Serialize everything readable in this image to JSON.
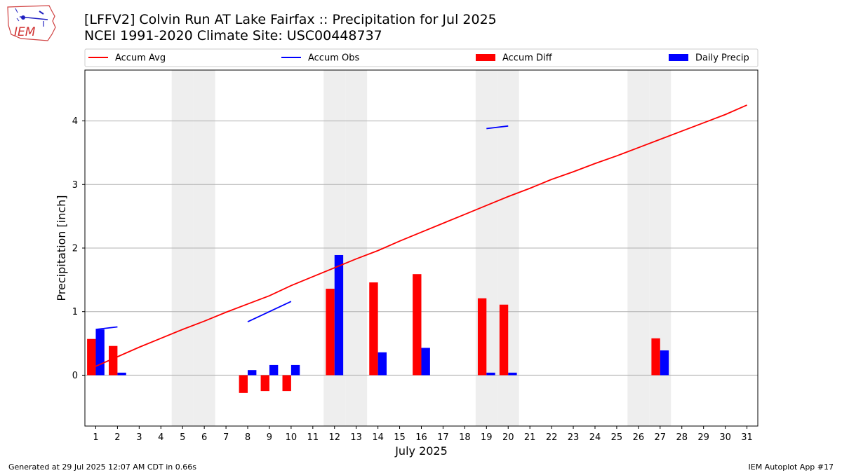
{
  "header": {
    "logo_text": "IEM",
    "title_line1": "[LFFV2] Colvin Run  AT Lake Fairfax :: Precipitation for Jul 2025",
    "title_line2": "NCEI 1991-2020 Climate Site: USC00448737"
  },
  "footer": {
    "left": "Generated at 29 Jul 2025 12:07 AM CDT in 0.66s",
    "right": "IEM Autoplot App #17"
  },
  "colors": {
    "accum_avg": "#ff0000",
    "accum_obs": "#0000ff",
    "accum_diff": "#ff0000",
    "daily_precip": "#0000ff",
    "weekend_shade": "#eeeeee",
    "grid": "#b0b0b0"
  },
  "chart_data": {
    "type": "bar",
    "xlabel": "July 2025",
    "ylabel": "Precipitation [inch]",
    "ylim": [
      -0.8,
      4.8
    ],
    "xlim": [
      0.5,
      31.5
    ],
    "yticks": [
      0,
      1,
      2,
      3,
      4
    ],
    "grid": "horizontal",
    "legend_placement": "top",
    "legend": [
      "Accum Avg",
      "Accum Obs",
      "Accum Diff",
      "Daily Precip"
    ],
    "days": [
      1,
      2,
      3,
      4,
      5,
      6,
      7,
      8,
      9,
      10,
      11,
      12,
      13,
      14,
      15,
      16,
      17,
      18,
      19,
      20,
      21,
      22,
      23,
      24,
      25,
      26,
      27,
      28,
      29,
      30,
      31
    ],
    "weekend_days": [
      5,
      6,
      12,
      13,
      19,
      20,
      26,
      27
    ],
    "series": [
      {
        "name": "Accum Avg",
        "kind": "line",
        "x": [
          1,
          2,
          3,
          4,
          5,
          6,
          7,
          8,
          9,
          10,
          11,
          12,
          13,
          14,
          15,
          16,
          17,
          18,
          19,
          20,
          21,
          22,
          23,
          24,
          25,
          26,
          27,
          28,
          29,
          30,
          31
        ],
        "values": [
          0.14,
          0.29,
          0.44,
          0.58,
          0.72,
          0.85,
          0.99,
          1.12,
          1.25,
          1.41,
          1.55,
          1.69,
          1.83,
          1.96,
          2.11,
          2.25,
          2.39,
          2.53,
          2.67,
          2.81,
          2.94,
          3.08,
          3.2,
          3.33,
          3.45,
          3.58,
          3.71,
          3.84,
          3.97,
          4.1,
          4.25
        ]
      },
      {
        "name": "Accum Obs",
        "kind": "line",
        "segments": [
          {
            "x": [
              1,
              2
            ],
            "values": [
              0.72,
              0.76
            ]
          },
          {
            "x": [
              8,
              9,
              10
            ],
            "values": [
              0.84,
              1.0,
              1.16
            ]
          },
          {
            "x": [
              19,
              20
            ],
            "values": [
              3.88,
              3.92
            ]
          }
        ]
      },
      {
        "name": "Accum Diff",
        "kind": "bar",
        "x": [
          1,
          2,
          8,
          9,
          10,
          12,
          14,
          16,
          19,
          20,
          27
        ],
        "values": [
          0.57,
          0.46,
          -0.28,
          -0.25,
          -0.25,
          1.36,
          1.46,
          1.59,
          1.21,
          1.11,
          0.58
        ]
      },
      {
        "name": "Daily Precip",
        "kind": "bar",
        "x": [
          1,
          2,
          8,
          9,
          10,
          12,
          14,
          16,
          19,
          20,
          27
        ],
        "values": [
          0.72,
          0.04,
          0.08,
          0.16,
          0.16,
          1.89,
          0.36,
          0.43,
          0.04,
          0.04,
          0.39
        ]
      }
    ]
  }
}
